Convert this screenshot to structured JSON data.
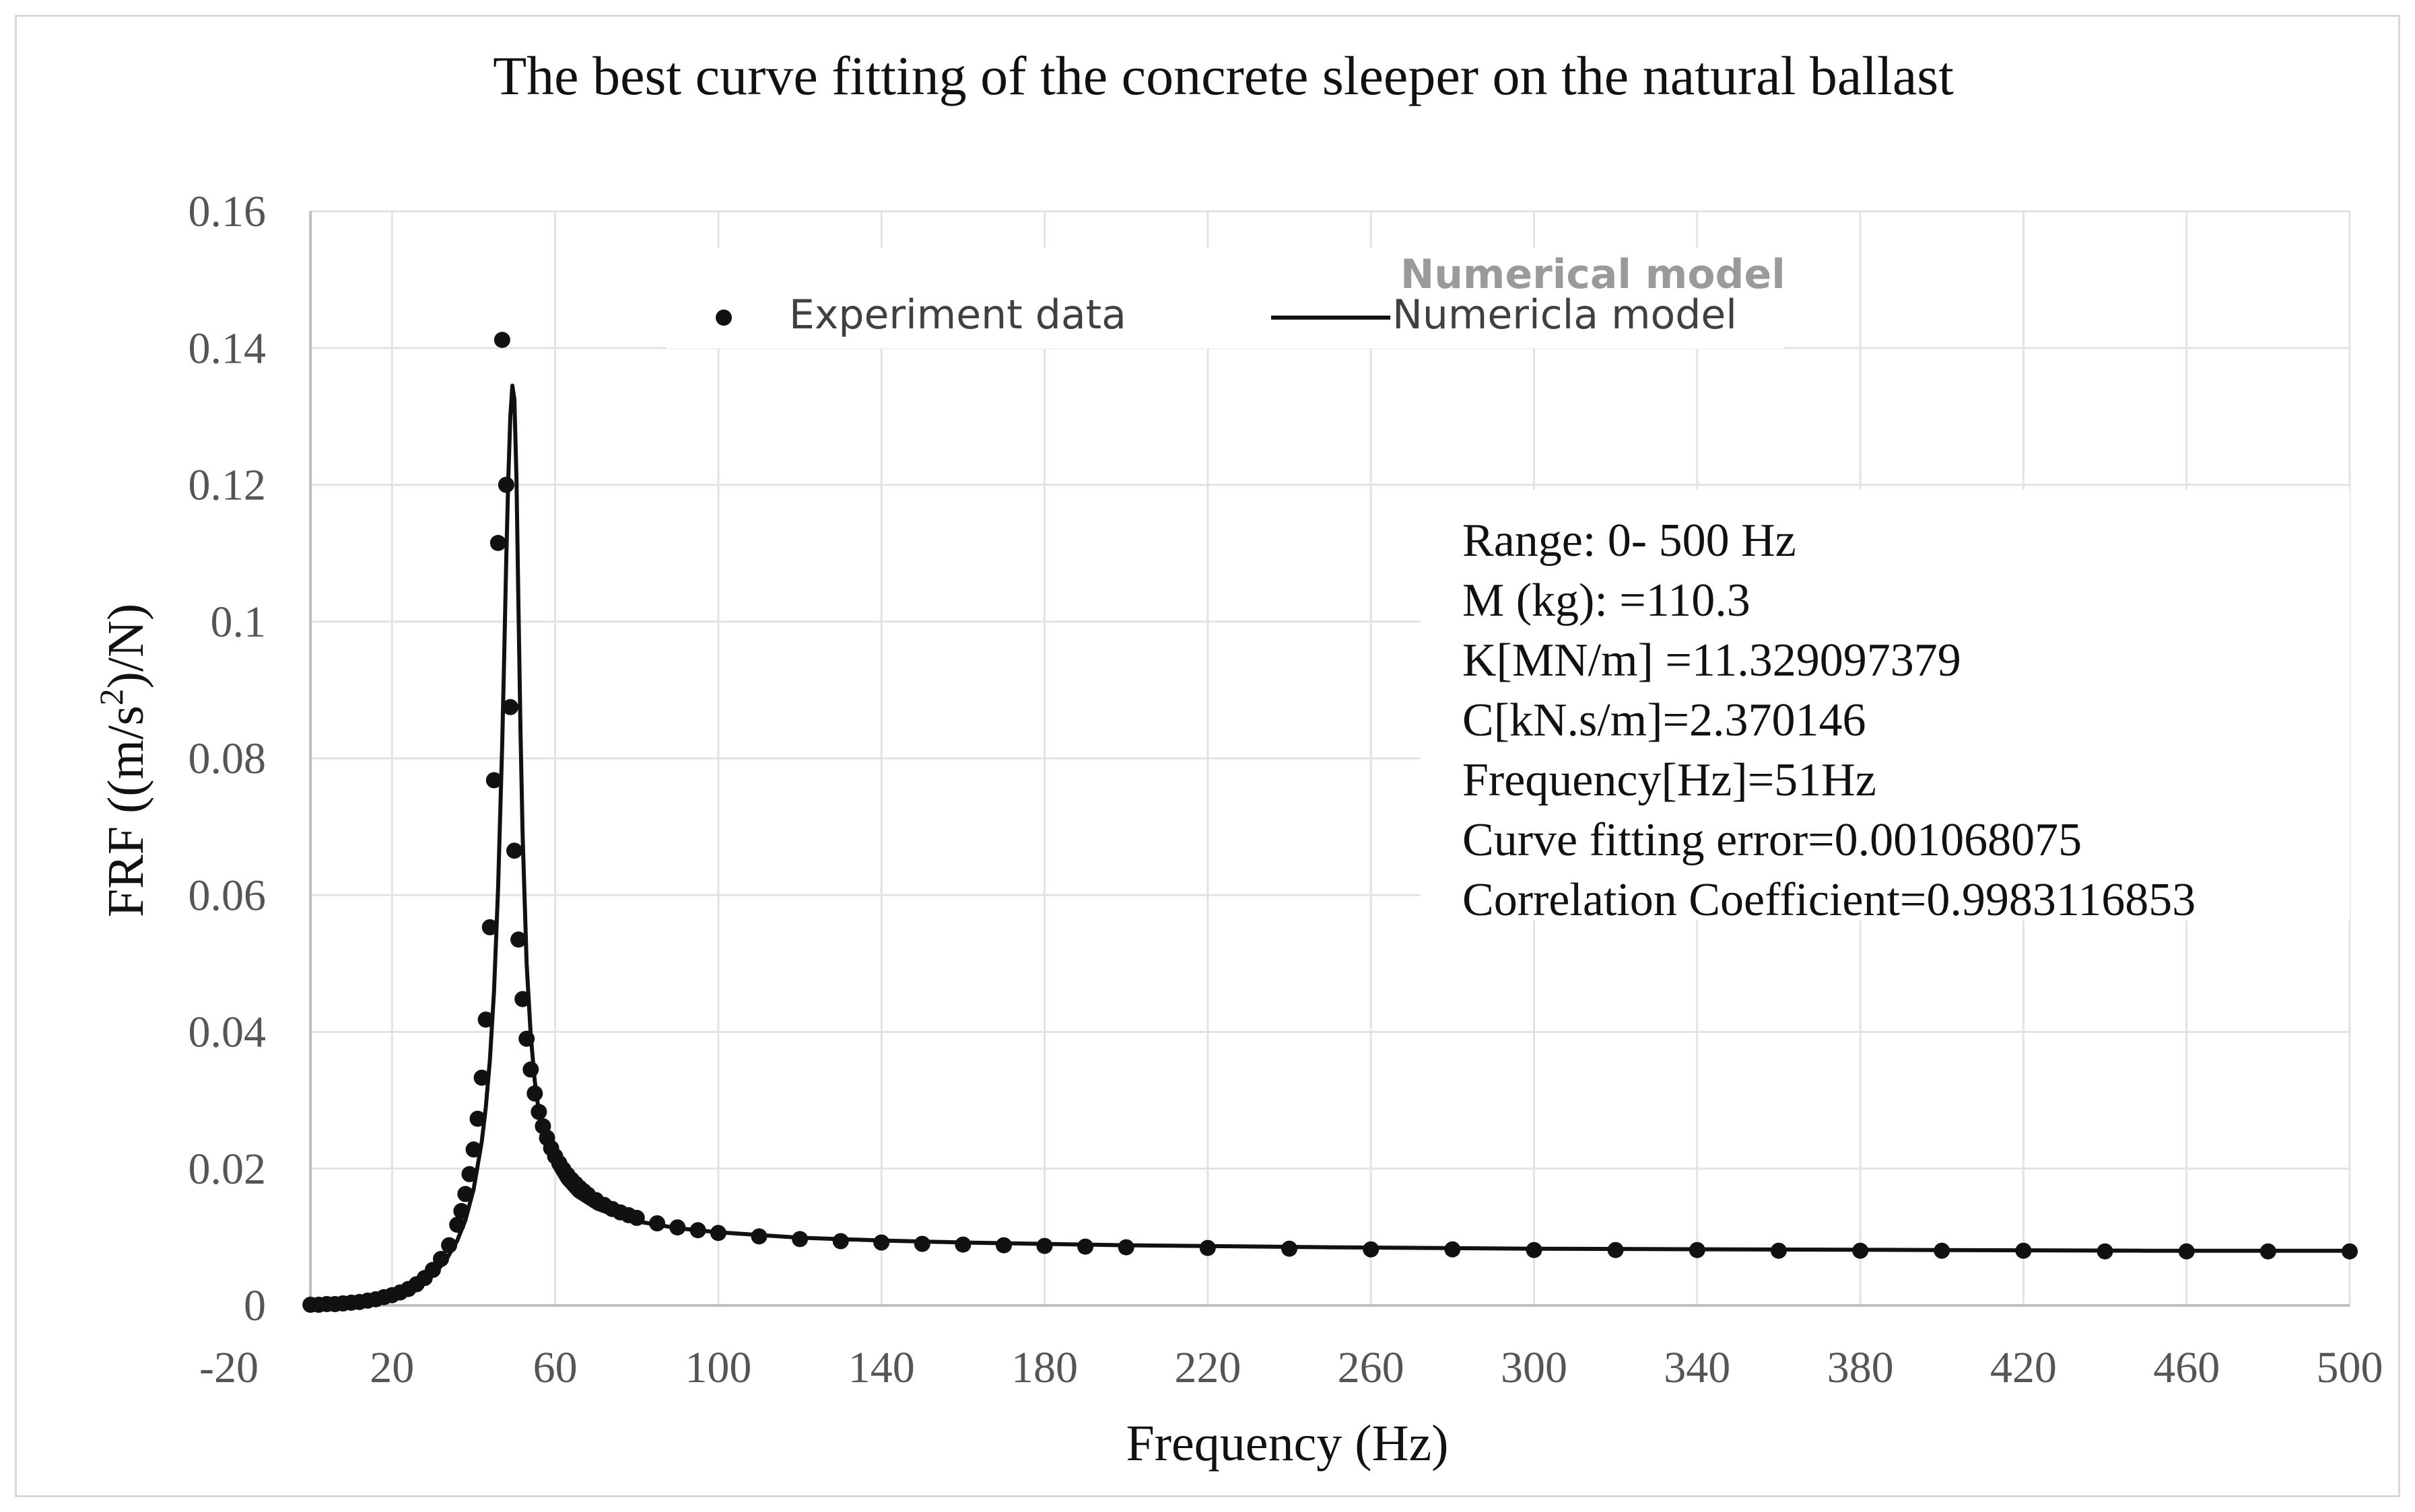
{
  "chart_data": {
    "type": "scatter",
    "title": "The best curve fitting of the concrete sleeper on the natural ballast",
    "xlabel": "Frequency (Hz)",
    "ylabel_prefix": "FRF ((m/s",
    "ylabel_sup": "2",
    "ylabel_suffix": ")/N)",
    "xlim": [
      -20,
      500
    ],
    "ylim": [
      0,
      0.16
    ],
    "x_ticks": [
      "-20",
      "20",
      "60",
      "100",
      "140",
      "180",
      "220",
      "260",
      "300",
      "340",
      "380",
      "420",
      "460",
      "500"
    ],
    "x_tick_values": [
      -20,
      20,
      60,
      100,
      140,
      180,
      220,
      260,
      300,
      340,
      380,
      420,
      460,
      500
    ],
    "y_ticks": [
      "0",
      "0.02",
      "0.04",
      "0.06",
      "0.08",
      "0.1",
      "0.12",
      "0.14",
      "0.16"
    ],
    "y_tick_values": [
      0,
      0.02,
      0.04,
      0.06,
      0.08,
      0.1,
      0.12,
      0.14,
      0.16
    ],
    "grid": true,
    "legend": {
      "experiment_label": "Experiment data",
      "model_label": "Numericla model",
      "model_overlay_label": "Numerical model"
    },
    "annotation_lines": [
      "Range: 0- 500 Hz",
      "M (kg): =110.3",
      "K[MN/m] =11.329097379",
      "C[kN.s/m]=2.370146",
      "Frequency[Hz]=51Hz",
      "Curve fitting error=0.001068075",
      "Correlation Coefficient=0.9983116853"
    ],
    "series": [
      {
        "name": "Experiment data",
        "kind": "points",
        "x": [
          0,
          2,
          4,
          6,
          8,
          10,
          12,
          14,
          16,
          18,
          20,
          22,
          24,
          26,
          28,
          30,
          32,
          34,
          36,
          37,
          38,
          39,
          40,
          41,
          42,
          43,
          44,
          45,
          46,
          47,
          48,
          49,
          50,
          51,
          52,
          53,
          54,
          55,
          56,
          57,
          58,
          59,
          60,
          61,
          62,
          63,
          64,
          65,
          66,
          67,
          68,
          70,
          72,
          74,
          76,
          78,
          80,
          85,
          90,
          95,
          100,
          110,
          120,
          130,
          140,
          150,
          160,
          170,
          180,
          190,
          200,
          220,
          240,
          260,
          280,
          300,
          320,
          340,
          360,
          380,
          400,
          420,
          440,
          460,
          480,
          500
        ],
        "y": [
          0.0001,
          0.0001,
          0.0002,
          0.0002,
          0.0003,
          0.0004,
          0.0005,
          0.0007,
          0.0009,
          0.0012,
          0.0015,
          0.0019,
          0.0024,
          0.0031,
          0.004,
          0.0052,
          0.0068,
          0.0088,
          0.0118,
          0.0138,
          0.0163,
          0.0192,
          0.0228,
          0.0273,
          0.0333,
          0.0418,
          0.0553,
          0.0768,
          0.1115,
          0.1412,
          0.12,
          0.0875,
          0.0665,
          0.0535,
          0.0448,
          0.039,
          0.0345,
          0.031,
          0.0283,
          0.0262,
          0.0245,
          0.023,
          0.0218,
          0.0208,
          0.0199,
          0.0191,
          0.0184,
          0.0178,
          0.0172,
          0.0167,
          0.0162,
          0.0154,
          0.0147,
          0.0141,
          0.0136,
          0.0132,
          0.0128,
          0.012,
          0.0114,
          0.011,
          0.0106,
          0.0101,
          0.0097,
          0.0094,
          0.0092,
          0.009,
          0.0089,
          0.0088,
          0.0087,
          0.0086,
          0.0085,
          0.0084,
          0.0083,
          0.0082,
          0.0082,
          0.0081,
          0.0081,
          0.0081,
          0.008,
          0.008,
          0.008,
          0.008,
          0.0079,
          0.0079,
          0.0079,
          0.0079
        ]
      },
      {
        "name": "Numericla model",
        "kind": "line",
        "x": [
          0,
          5,
          10,
          15,
          20,
          25,
          30,
          33,
          36,
          38,
          40,
          42,
          43,
          44,
          45,
          46,
          47,
          47.5,
          48,
          48.5,
          49,
          49.5,
          50,
          50.5,
          51,
          51.5,
          52,
          53,
          54,
          55,
          56,
          58,
          60,
          62,
          65,
          70,
          75,
          80,
          90,
          100,
          120,
          140,
          160,
          200,
          250,
          300,
          350,
          400,
          450,
          500
        ],
        "y": [
          0,
          0.0002,
          0.0004,
          0.0008,
          0.0014,
          0.0025,
          0.0045,
          0.0064,
          0.0095,
          0.0125,
          0.017,
          0.024,
          0.029,
          0.036,
          0.046,
          0.061,
          0.082,
          0.095,
          0.109,
          0.121,
          0.13,
          0.1345,
          0.1325,
          0.121,
          0.102,
          0.084,
          0.069,
          0.05,
          0.0395,
          0.0328,
          0.0283,
          0.0232,
          0.0201,
          0.0181,
          0.0161,
          0.0142,
          0.0131,
          0.0123,
          0.0113,
          0.0107,
          0.0099,
          0.0095,
          0.0092,
          0.0088,
          0.0085,
          0.0083,
          0.0082,
          0.0081,
          0.008,
          0.008
        ]
      }
    ]
  }
}
